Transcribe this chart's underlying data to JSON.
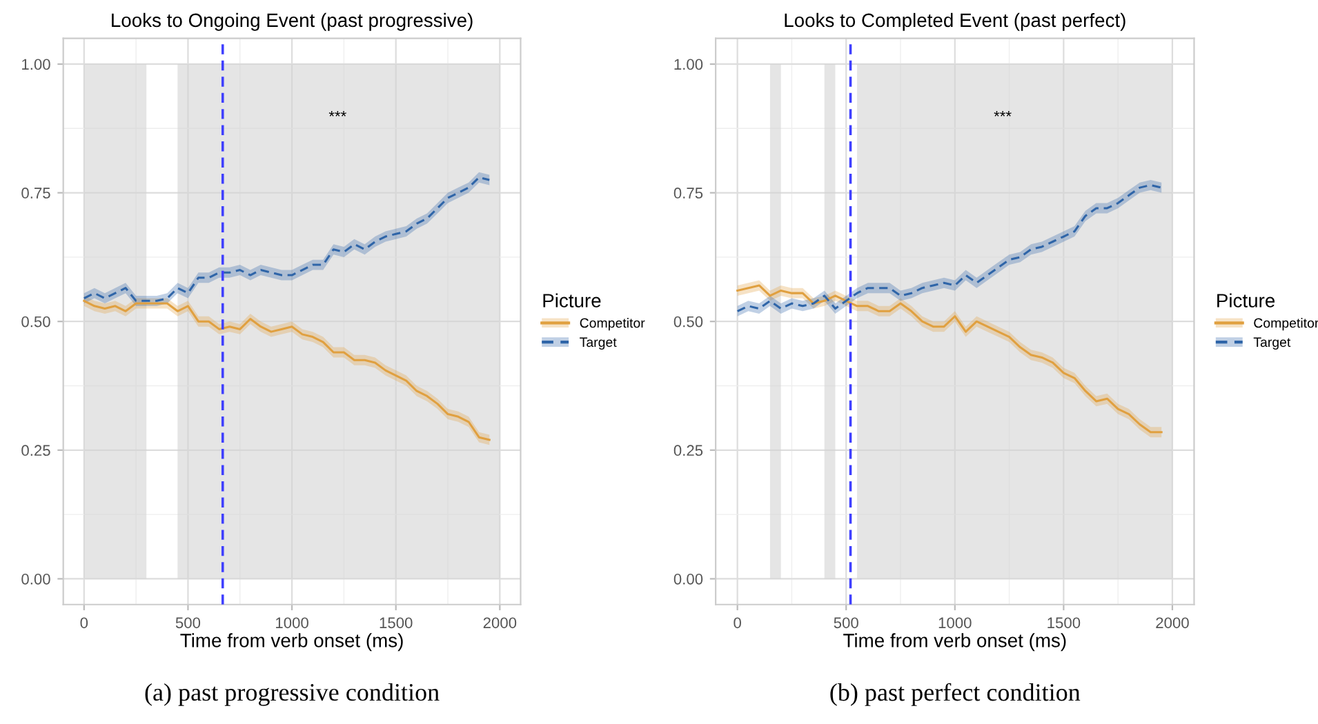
{
  "chart_data": [
    {
      "type": "line",
      "title": "Looks to Ongoing Event (past progressive)",
      "xlabel": "Time from verb onset (ms)",
      "legend_title": "Picture",
      "legend": "right",
      "grid": true,
      "x": [
        0,
        50,
        100,
        150,
        200,
        250,
        300,
        350,
        400,
        450,
        500,
        550,
        600,
        650,
        700,
        750,
        800,
        850,
        900,
        950,
        1000,
        1050,
        1100,
        1150,
        1200,
        1250,
        1300,
        1350,
        1400,
        1450,
        1500,
        1550,
        1600,
        1650,
        1700,
        1750,
        1800,
        1850,
        1900,
        1950
      ],
      "xlim": [
        -100,
        2100
      ],
      "xticks": [
        0,
        500,
        1000,
        1500,
        2000
      ],
      "ylim": [
        -0.05,
        1.05
      ],
      "yticks": [
        {
          "value": 0,
          "label": "0.00"
        },
        {
          "value": 0.25,
          "label": "0.25"
        },
        {
          "value": 0.5,
          "label": "0.50"
        },
        {
          "value": 0.75,
          "label": "0.75"
        },
        {
          "value": 1,
          "label": "1.00"
        }
      ],
      "series": [
        {
          "name": "Competitor",
          "color": "#e0a040",
          "line_style": "solid",
          "values": [
            0.54,
            0.53,
            0.525,
            0.53,
            0.52,
            0.535,
            0.535,
            0.535,
            0.535,
            0.52,
            0.53,
            0.5,
            0.5,
            0.485,
            0.49,
            0.485,
            0.505,
            0.49,
            0.48,
            0.485,
            0.49,
            0.475,
            0.47,
            0.46,
            0.44,
            0.44,
            0.425,
            0.425,
            0.42,
            0.405,
            0.395,
            0.385,
            0.365,
            0.355,
            0.34,
            0.32,
            0.315,
            0.305,
            0.275,
            0.27
          ],
          "lower": [
            0.53,
            0.52,
            0.515,
            0.52,
            0.51,
            0.525,
            0.525,
            0.525,
            0.525,
            0.51,
            0.52,
            0.49,
            0.49,
            0.475,
            0.48,
            0.475,
            0.495,
            0.48,
            0.47,
            0.475,
            0.48,
            0.465,
            0.46,
            0.45,
            0.43,
            0.43,
            0.415,
            0.415,
            0.41,
            0.395,
            0.385,
            0.375,
            0.355,
            0.345,
            0.33,
            0.31,
            0.305,
            0.295,
            0.265,
            0.26
          ],
          "upper": [
            0.55,
            0.54,
            0.535,
            0.54,
            0.53,
            0.545,
            0.545,
            0.545,
            0.545,
            0.53,
            0.54,
            0.51,
            0.51,
            0.495,
            0.5,
            0.495,
            0.515,
            0.5,
            0.49,
            0.495,
            0.5,
            0.485,
            0.48,
            0.47,
            0.45,
            0.45,
            0.435,
            0.435,
            0.43,
            0.415,
            0.405,
            0.395,
            0.375,
            0.365,
            0.35,
            0.33,
            0.325,
            0.315,
            0.285,
            0.28
          ]
        },
        {
          "name": "Target",
          "color": "#2f65a8",
          "line_style": "dashed",
          "values": [
            0.545,
            0.555,
            0.545,
            0.555,
            0.565,
            0.54,
            0.54,
            0.54,
            0.545,
            0.565,
            0.555,
            0.585,
            0.585,
            0.595,
            0.595,
            0.6,
            0.59,
            0.6,
            0.595,
            0.59,
            0.59,
            0.6,
            0.61,
            0.61,
            0.64,
            0.635,
            0.65,
            0.64,
            0.655,
            0.665,
            0.67,
            0.675,
            0.69,
            0.7,
            0.72,
            0.74,
            0.75,
            0.76,
            0.78,
            0.775
          ],
          "lower": [
            0.535,
            0.545,
            0.535,
            0.545,
            0.555,
            0.53,
            0.53,
            0.53,
            0.535,
            0.555,
            0.545,
            0.575,
            0.575,
            0.585,
            0.585,
            0.59,
            0.58,
            0.59,
            0.585,
            0.58,
            0.58,
            0.59,
            0.6,
            0.6,
            0.63,
            0.625,
            0.64,
            0.63,
            0.645,
            0.655,
            0.66,
            0.665,
            0.68,
            0.69,
            0.71,
            0.73,
            0.74,
            0.75,
            0.77,
            0.765
          ],
          "upper": [
            0.555,
            0.565,
            0.555,
            0.565,
            0.575,
            0.55,
            0.55,
            0.55,
            0.555,
            0.575,
            0.565,
            0.595,
            0.595,
            0.605,
            0.605,
            0.61,
            0.6,
            0.61,
            0.605,
            0.6,
            0.6,
            0.61,
            0.62,
            0.62,
            0.65,
            0.645,
            0.66,
            0.65,
            0.665,
            0.675,
            0.68,
            0.685,
            0.7,
            0.71,
            0.73,
            0.75,
            0.76,
            0.77,
            0.79,
            0.785
          ]
        }
      ],
      "bands": [
        {
          "axis": "x",
          "from": 0,
          "to": 300,
          "color": "#d4d4d4"
        },
        {
          "axis": "x",
          "from": 450,
          "to": 2000,
          "color": "#d4d4d4"
        }
      ],
      "ref_lines": [
        {
          "axis": "x",
          "value": 667,
          "color": "#4040ff",
          "line_style": "dashed"
        }
      ],
      "annotations": [
        "***",
        "(a) past progressive condition"
      ]
    },
    {
      "type": "line",
      "title": "Looks to Completed Event (past perfect)",
      "xlabel": "Time from verb onset (ms)",
      "legend_title": "Picture",
      "legend": "right",
      "grid": true,
      "x": [
        0,
        50,
        100,
        150,
        200,
        250,
        300,
        350,
        400,
        450,
        500,
        550,
        600,
        650,
        700,
        750,
        800,
        850,
        900,
        950,
        1000,
        1050,
        1100,
        1150,
        1200,
        1250,
        1300,
        1350,
        1400,
        1450,
        1500,
        1550,
        1600,
        1650,
        1700,
        1750,
        1800,
        1850,
        1900,
        1950
      ],
      "xlim": [
        -100,
        2100
      ],
      "xticks": [
        0,
        500,
        1000,
        1500,
        2000
      ],
      "ylim": [
        -0.05,
        1.05
      ],
      "yticks": [
        {
          "value": 0,
          "label": "0.00"
        },
        {
          "value": 0.25,
          "label": "0.25"
        },
        {
          "value": 0.5,
          "label": "0.50"
        },
        {
          "value": 0.75,
          "label": "0.75"
        },
        {
          "value": 1,
          "label": "1.00"
        }
      ],
      "series": [
        {
          "name": "Competitor",
          "color": "#e0a040",
          "line_style": "solid",
          "values": [
            0.56,
            0.565,
            0.57,
            0.55,
            0.56,
            0.555,
            0.555,
            0.535,
            0.54,
            0.55,
            0.54,
            0.53,
            0.53,
            0.52,
            0.52,
            0.535,
            0.52,
            0.5,
            0.49,
            0.49,
            0.51,
            0.48,
            0.5,
            0.49,
            0.48,
            0.47,
            0.45,
            0.435,
            0.43,
            0.42,
            0.4,
            0.39,
            0.365,
            0.345,
            0.35,
            0.33,
            0.32,
            0.3,
            0.285,
            0.285
          ],
          "lower": [
            0.55,
            0.555,
            0.56,
            0.54,
            0.55,
            0.545,
            0.545,
            0.525,
            0.53,
            0.54,
            0.53,
            0.52,
            0.52,
            0.51,
            0.51,
            0.525,
            0.51,
            0.49,
            0.48,
            0.48,
            0.5,
            0.47,
            0.49,
            0.48,
            0.47,
            0.46,
            0.44,
            0.425,
            0.42,
            0.41,
            0.39,
            0.38,
            0.355,
            0.335,
            0.34,
            0.32,
            0.31,
            0.29,
            0.275,
            0.275
          ],
          "upper": [
            0.57,
            0.575,
            0.58,
            0.56,
            0.57,
            0.565,
            0.565,
            0.545,
            0.55,
            0.56,
            0.55,
            0.54,
            0.54,
            0.53,
            0.53,
            0.545,
            0.53,
            0.51,
            0.5,
            0.5,
            0.52,
            0.49,
            0.51,
            0.5,
            0.49,
            0.48,
            0.46,
            0.445,
            0.44,
            0.43,
            0.41,
            0.4,
            0.375,
            0.355,
            0.36,
            0.34,
            0.33,
            0.31,
            0.295,
            0.295
          ]
        },
        {
          "name": "Target",
          "color": "#2f65a8",
          "line_style": "dashed",
          "values": [
            0.52,
            0.53,
            0.525,
            0.54,
            0.525,
            0.535,
            0.53,
            0.535,
            0.55,
            0.525,
            0.54,
            0.555,
            0.565,
            0.565,
            0.565,
            0.55,
            0.555,
            0.565,
            0.57,
            0.575,
            0.57,
            0.59,
            0.575,
            0.59,
            0.605,
            0.62,
            0.625,
            0.64,
            0.645,
            0.655,
            0.665,
            0.675,
            0.705,
            0.72,
            0.72,
            0.73,
            0.745,
            0.76,
            0.765,
            0.76
          ],
          "lower": [
            0.51,
            0.52,
            0.515,
            0.53,
            0.515,
            0.525,
            0.52,
            0.525,
            0.54,
            0.515,
            0.53,
            0.545,
            0.555,
            0.555,
            0.555,
            0.54,
            0.545,
            0.555,
            0.56,
            0.565,
            0.56,
            0.58,
            0.565,
            0.58,
            0.595,
            0.61,
            0.615,
            0.63,
            0.635,
            0.645,
            0.655,
            0.665,
            0.695,
            0.71,
            0.71,
            0.72,
            0.735,
            0.75,
            0.755,
            0.75
          ],
          "upper": [
            0.53,
            0.54,
            0.535,
            0.55,
            0.535,
            0.545,
            0.54,
            0.545,
            0.56,
            0.535,
            0.55,
            0.565,
            0.575,
            0.575,
            0.575,
            0.56,
            0.565,
            0.575,
            0.58,
            0.585,
            0.58,
            0.6,
            0.585,
            0.6,
            0.615,
            0.63,
            0.635,
            0.65,
            0.655,
            0.665,
            0.675,
            0.685,
            0.715,
            0.73,
            0.73,
            0.74,
            0.755,
            0.77,
            0.775,
            0.77
          ]
        }
      ],
      "bands": [
        {
          "axis": "x",
          "from": 150,
          "to": 200,
          "color": "#d4d4d4"
        },
        {
          "axis": "x",
          "from": 400,
          "to": 450,
          "color": "#d4d4d4"
        },
        {
          "axis": "x",
          "from": 550,
          "to": 2000,
          "color": "#d4d4d4"
        }
      ],
      "ref_lines": [
        {
          "axis": "x",
          "value": 520,
          "color": "#4040ff",
          "line_style": "dashed"
        }
      ],
      "annotations": [
        "***",
        "(b) past perfect condition"
      ]
    }
  ]
}
